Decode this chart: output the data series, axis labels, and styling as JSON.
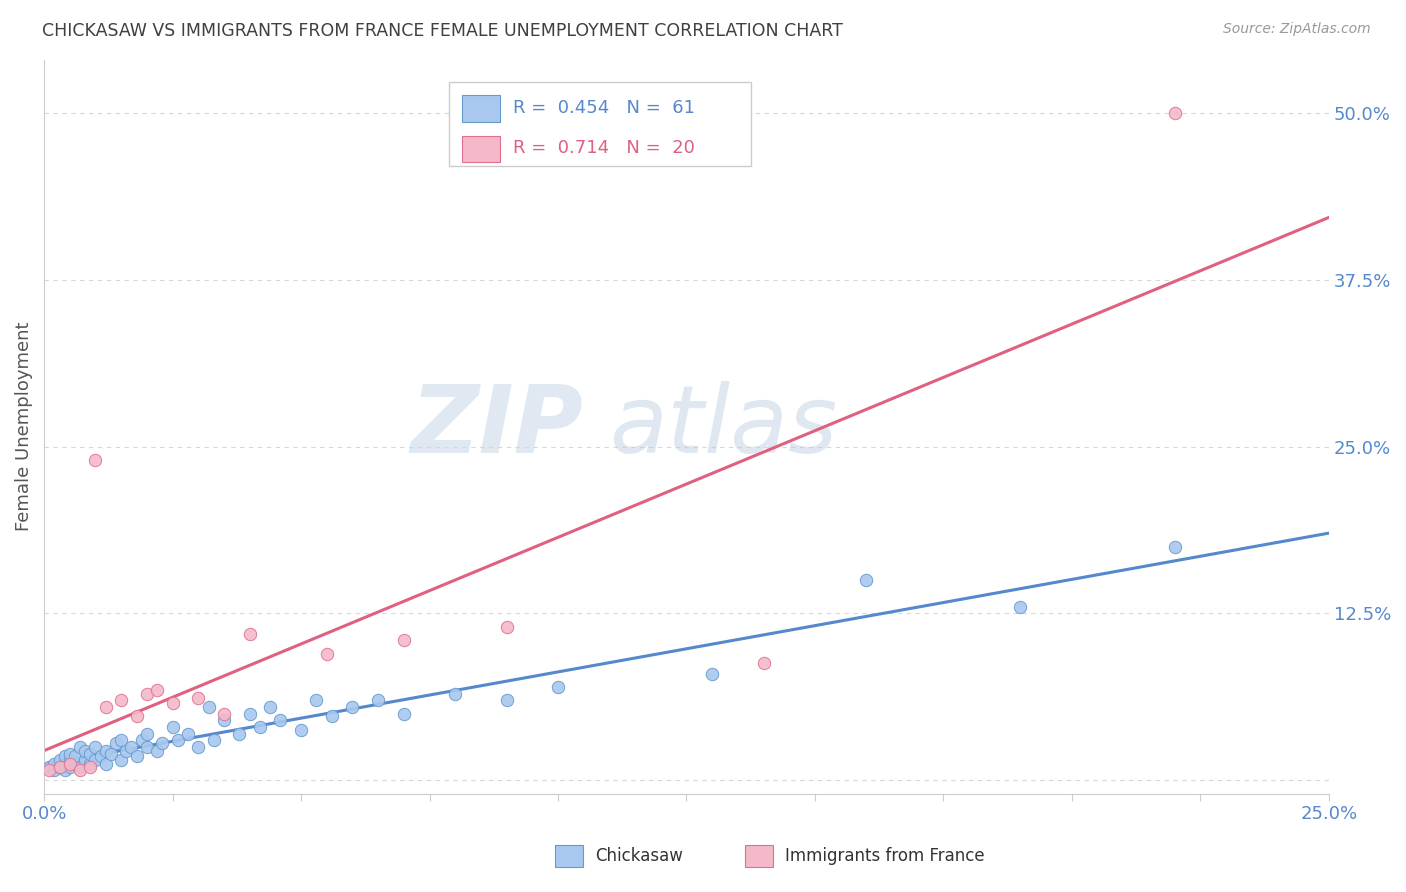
{
  "title": "CHICKASAW VS IMMIGRANTS FROM FRANCE FEMALE UNEMPLOYMENT CORRELATION CHART",
  "source": "Source: ZipAtlas.com",
  "ylabel": "Female Unemployment",
  "background_color": "#ffffff",
  "series": [
    {
      "name": "Chickasaw",
      "color": "#a8c8f0",
      "edge_color": "#6699cc",
      "R": 0.454,
      "N": 61,
      "x": [
        0.001,
        0.002,
        0.002,
        0.003,
        0.003,
        0.004,
        0.004,
        0.004,
        0.005,
        0.005,
        0.005,
        0.006,
        0.006,
        0.007,
        0.007,
        0.008,
        0.008,
        0.009,
        0.009,
        0.01,
        0.01,
        0.011,
        0.012,
        0.012,
        0.013,
        0.014,
        0.015,
        0.015,
        0.016,
        0.017,
        0.018,
        0.019,
        0.02,
        0.02,
        0.022,
        0.023,
        0.025,
        0.026,
        0.028,
        0.03,
        0.032,
        0.033,
        0.035,
        0.038,
        0.04,
        0.042,
        0.044,
        0.046,
        0.05,
        0.053,
        0.056,
        0.06,
        0.065,
        0.07,
        0.08,
        0.09,
        0.1,
        0.13,
        0.16,
        0.19,
        0.22
      ],
      "y": [
        0.01,
        0.008,
        0.012,
        0.01,
        0.015,
        0.008,
        0.012,
        0.018,
        0.01,
        0.015,
        0.02,
        0.012,
        0.018,
        0.01,
        0.025,
        0.015,
        0.022,
        0.012,
        0.02,
        0.015,
        0.025,
        0.018,
        0.012,
        0.022,
        0.02,
        0.028,
        0.015,
        0.03,
        0.022,
        0.025,
        0.018,
        0.03,
        0.025,
        0.035,
        0.022,
        0.028,
        0.04,
        0.03,
        0.035,
        0.025,
        0.055,
        0.03,
        0.045,
        0.035,
        0.05,
        0.04,
        0.055,
        0.045,
        0.038,
        0.06,
        0.048,
        0.055,
        0.06,
        0.05,
        0.065,
        0.06,
        0.07,
        0.08,
        0.15,
        0.13,
        0.175
      ]
    },
    {
      "name": "Immigrants from France",
      "color": "#f4b8c8",
      "edge_color": "#e07090",
      "R": 0.714,
      "N": 20,
      "x": [
        0.001,
        0.003,
        0.005,
        0.007,
        0.009,
        0.01,
        0.012,
        0.015,
        0.018,
        0.02,
        0.022,
        0.025,
        0.03,
        0.035,
        0.04,
        0.055,
        0.07,
        0.09,
        0.14,
        0.22
      ],
      "y": [
        0.008,
        0.01,
        0.012,
        0.008,
        0.01,
        0.24,
        0.055,
        0.06,
        0.048,
        0.065,
        0.068,
        0.058,
        0.062,
        0.05,
        0.11,
        0.095,
        0.105,
        0.115,
        0.088,
        0.5
      ]
    }
  ],
  "x_ticks": [
    0.0,
    0.025,
    0.05,
    0.075,
    0.1,
    0.125,
    0.15,
    0.175,
    0.2,
    0.225,
    0.25
  ],
  "y_ticks_right": [
    0.0,
    0.125,
    0.25,
    0.375,
    0.5
  ],
  "y_tick_labels_right": [
    "",
    "12.5%",
    "25.0%",
    "37.5%",
    "50.0%"
  ],
  "xlim": [
    0.0,
    0.25
  ],
  "ylim": [
    -0.01,
    0.54
  ],
  "grid_color": "#d8d8d8",
  "trend_line_blue": "#5588cc",
  "trend_line_pink": "#e06080",
  "title_color": "#404040",
  "axis_label_color": "#555555",
  "tick_label_color": "#5588cc",
  "source_color": "#999999",
  "legend_text_color": "#5588cc",
  "legend_pink_text_color": "#e06080"
}
